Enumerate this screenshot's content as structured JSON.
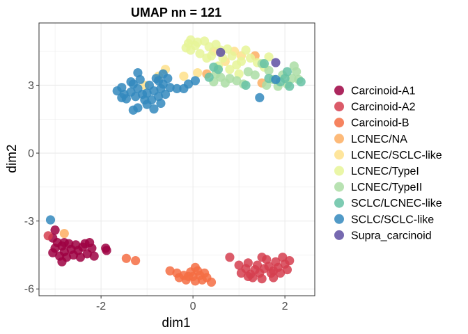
{
  "chart_data": {
    "type": "scatter",
    "title": "UMAP nn = 121",
    "xlabel": "dim1",
    "ylabel": "dim2",
    "xlim": [
      -3.35,
      2.65
    ],
    "ylim": [
      -6.3,
      5.75
    ],
    "x_ticks": [
      -2,
      0,
      2
    ],
    "x_tick_labels": [
      "-2",
      "0",
      "2"
    ],
    "y_ticks": [
      -6,
      -3,
      0,
      3
    ],
    "y_tick_labels": [
      "-6",
      "-3",
      "0",
      "3"
    ],
    "grid": true,
    "legend_position": "right",
    "colors": {
      "Carcinoid-A1": "#9E0142",
      "Carcinoid-A2": "#D53E4F",
      "Carcinoid-B": "#F46D43",
      "LCNEC/NA": "#FDAE61",
      "LCNEC/SCLC-like": "#FEE08B",
      "LCNEC/TypeI": "#E6F598",
      "LCNEC/TypeII": "#ABDDA4",
      "SCLC/LCNEC-like": "#66C2A5",
      "SCLC/SCLC-like": "#3288BD",
      "Supra_carcinoid": "#5E4FA2"
    },
    "series": [
      {
        "name": "Carcinoid-A1",
        "points": [
          [
            -3.0,
            -3.4
          ],
          [
            -3.05,
            -3.75
          ],
          [
            -2.95,
            -3.95
          ],
          [
            -3.0,
            -4.2
          ],
          [
            -3.05,
            -4.4
          ],
          [
            -2.85,
            -4.1
          ],
          [
            -2.8,
            -4.35
          ],
          [
            -2.75,
            -4.6
          ],
          [
            -2.85,
            -4.8
          ],
          [
            -2.65,
            -4.25
          ],
          [
            -2.6,
            -4.5
          ],
          [
            -2.5,
            -4.3
          ],
          [
            -2.45,
            -4.6
          ],
          [
            -2.7,
            -4.0
          ],
          [
            -2.55,
            -4.05
          ],
          [
            -2.4,
            -4.15
          ],
          [
            -2.3,
            -4.45
          ],
          [
            -2.35,
            -4.0
          ],
          [
            -2.25,
            -3.95
          ],
          [
            -2.2,
            -4.2
          ],
          [
            -2.15,
            -4.55
          ],
          [
            -2.9,
            -4.55
          ],
          [
            -2.8,
            -3.95
          ],
          [
            -1.9,
            -4.2
          ],
          [
            -1.88,
            -4.3
          ]
        ]
      },
      {
        "name": "Carcinoid-A2",
        "points": [
          [
            -3.15,
            -3.65
          ],
          [
            0.8,
            -4.6
          ],
          [
            1.0,
            -4.95
          ],
          [
            1.05,
            -5.3
          ],
          [
            1.15,
            -5.1
          ],
          [
            1.2,
            -4.85
          ],
          [
            1.25,
            -5.35
          ],
          [
            1.3,
            -5.5
          ],
          [
            1.35,
            -5.15
          ],
          [
            1.4,
            -4.95
          ],
          [
            1.45,
            -5.3
          ],
          [
            1.5,
            -5.55
          ],
          [
            1.55,
            -5.1
          ],
          [
            1.6,
            -4.7
          ],
          [
            1.65,
            -5.0
          ],
          [
            1.7,
            -5.3
          ],
          [
            1.75,
            -5.5
          ],
          [
            1.8,
            -4.8
          ],
          [
            1.85,
            -5.05
          ],
          [
            1.9,
            -5.3
          ],
          [
            1.95,
            -4.6
          ],
          [
            2.0,
            -4.9
          ],
          [
            2.05,
            -5.15
          ],
          [
            2.1,
            -4.75
          ],
          [
            1.5,
            -4.6
          ],
          [
            1.2,
            -5.45
          ],
          [
            1.75,
            -5.2
          ]
        ]
      },
      {
        "name": "Carcinoid-B",
        "points": [
          [
            -1.45,
            -4.65
          ],
          [
            -1.25,
            -4.75
          ],
          [
            -0.5,
            -5.2
          ],
          [
            -0.35,
            -5.3
          ],
          [
            -0.3,
            -5.5
          ],
          [
            -0.2,
            -5.4
          ],
          [
            -0.15,
            -5.6
          ],
          [
            -0.05,
            -5.25
          ],
          [
            0.0,
            -5.45
          ],
          [
            0.05,
            -5.65
          ],
          [
            0.1,
            -5.2
          ],
          [
            0.15,
            -5.4
          ],
          [
            0.2,
            -5.6
          ],
          [
            0.25,
            -5.3
          ],
          [
            0.3,
            -5.5
          ],
          [
            0.4,
            -5.7
          ],
          [
            0.05,
            -5.05
          ],
          [
            -0.1,
            -5.45
          ]
        ]
      },
      {
        "name": "LCNEC/NA",
        "points": [
          [
            -2.8,
            -3.55
          ],
          [
            0.3,
            3.5
          ],
          [
            1.35,
            4.3
          ],
          [
            1.5,
            3.1
          ]
        ]
      },
      {
        "name": "LCNEC/SCLC-like",
        "points": [
          [
            -1.05,
            3.0
          ],
          [
            -0.6,
            3.7
          ],
          [
            -0.2,
            3.4
          ],
          [
            0.1,
            3.55
          ],
          [
            0.45,
            4.5
          ],
          [
            0.7,
            4.05
          ],
          [
            0.9,
            4.5
          ],
          [
            1.05,
            4.3
          ],
          [
            -0.75,
            3.4
          ]
        ]
      },
      {
        "name": "LCNEC/TypeI",
        "points": [
          [
            -0.15,
            4.65
          ],
          [
            -0.1,
            4.85
          ],
          [
            -0.05,
            5.0
          ],
          [
            0.05,
            4.75
          ],
          [
            0.1,
            4.9
          ],
          [
            0.15,
            4.4
          ],
          [
            0.25,
            4.95
          ],
          [
            0.35,
            4.7
          ],
          [
            0.4,
            4.3
          ],
          [
            0.5,
            4.8
          ],
          [
            0.6,
            4.55
          ],
          [
            0.65,
            4.2
          ],
          [
            0.75,
            4.6
          ],
          [
            0.85,
            4.3
          ],
          [
            0.95,
            3.9
          ],
          [
            1.05,
            4.05
          ],
          [
            1.15,
            4.55
          ],
          [
            1.25,
            4.2
          ],
          [
            1.4,
            4.0
          ],
          [
            1.55,
            3.8
          ],
          [
            1.65,
            4.25
          ],
          [
            -0.05,
            4.55
          ],
          [
            0.3,
            4.2
          ],
          [
            0.55,
            3.85
          ],
          [
            0.8,
            3.7
          ],
          [
            1.0,
            3.5
          ]
        ]
      },
      {
        "name": "LCNEC/TypeII",
        "points": [
          [
            0.5,
            3.5
          ],
          [
            0.45,
            3.15
          ],
          [
            0.6,
            3.35
          ],
          [
            0.7,
            3.1
          ],
          [
            0.95,
            3.2
          ],
          [
            1.1,
            3.05
          ],
          [
            1.2,
            3.6
          ],
          [
            1.35,
            3.45
          ],
          [
            1.5,
            3.95
          ],
          [
            1.65,
            3.65
          ],
          [
            1.75,
            3.25
          ],
          [
            1.85,
            2.95
          ],
          [
            1.95,
            3.45
          ],
          [
            2.05,
            3.05
          ],
          [
            2.15,
            3.3
          ],
          [
            2.25,
            3.6
          ],
          [
            2.3,
            3.25
          ],
          [
            2.2,
            3.85
          ],
          [
            1.6,
            3.0
          ],
          [
            0.8,
            3.3
          ]
        ]
      },
      {
        "name": "SCLC/LCNEC-like",
        "points": [
          [
            0.35,
            3.35
          ],
          [
            0.45,
            3.8
          ],
          [
            0.55,
            3.7
          ],
          [
            1.15,
            3.0
          ],
          [
            1.65,
            3.3
          ],
          [
            1.9,
            3.15
          ],
          [
            2.0,
            3.3
          ],
          [
            2.05,
            3.6
          ],
          [
            2.1,
            2.95
          ],
          [
            2.35,
            3.15
          ],
          [
            1.55,
            3.95
          ]
        ]
      },
      {
        "name": "SCLC/SCLC-like",
        "points": [
          [
            -3.1,
            -2.95
          ],
          [
            -1.65,
            2.75
          ],
          [
            -1.55,
            2.9
          ],
          [
            -1.5,
            2.6
          ],
          [
            -1.45,
            2.4
          ],
          [
            -1.35,
            2.7
          ],
          [
            -1.3,
            3.05
          ],
          [
            -1.25,
            2.5
          ],
          [
            -1.2,
            2.85
          ],
          [
            -1.15,
            3.25
          ],
          [
            -1.1,
            2.6
          ],
          [
            -1.05,
            2.35
          ],
          [
            -1.0,
            2.15
          ],
          [
            -1.0,
            2.65
          ],
          [
            -0.95,
            3.0
          ],
          [
            -0.9,
            2.35
          ],
          [
            -0.85,
            1.95
          ],
          [
            -0.85,
            2.75
          ],
          [
            -0.8,
            3.3
          ],
          [
            -0.75,
            2.5
          ],
          [
            -0.7,
            2.85
          ],
          [
            -0.7,
            2.2
          ],
          [
            -0.65,
            3.05
          ],
          [
            -0.6,
            2.6
          ],
          [
            -0.55,
            3.3
          ],
          [
            -0.5,
            2.9
          ],
          [
            -1.3,
            1.9
          ],
          [
            -1.2,
            2.0
          ],
          [
            -0.65,
            3.5
          ],
          [
            -0.75,
            3.2
          ],
          [
            -0.35,
            2.85
          ],
          [
            -0.2,
            2.85
          ],
          [
            -0.1,
            3.05
          ],
          [
            0.05,
            3.2
          ],
          [
            -1.55,
            2.45
          ],
          [
            1.8,
            3.25
          ],
          [
            1.45,
            2.45
          ],
          [
            -1.2,
            3.55
          ],
          [
            -1.35,
            3.15
          ]
        ]
      },
      {
        "name": "Supra_carcinoid",
        "points": [
          [
            0.6,
            4.45
          ],
          [
            1.8,
            4.0
          ]
        ]
      }
    ]
  }
}
